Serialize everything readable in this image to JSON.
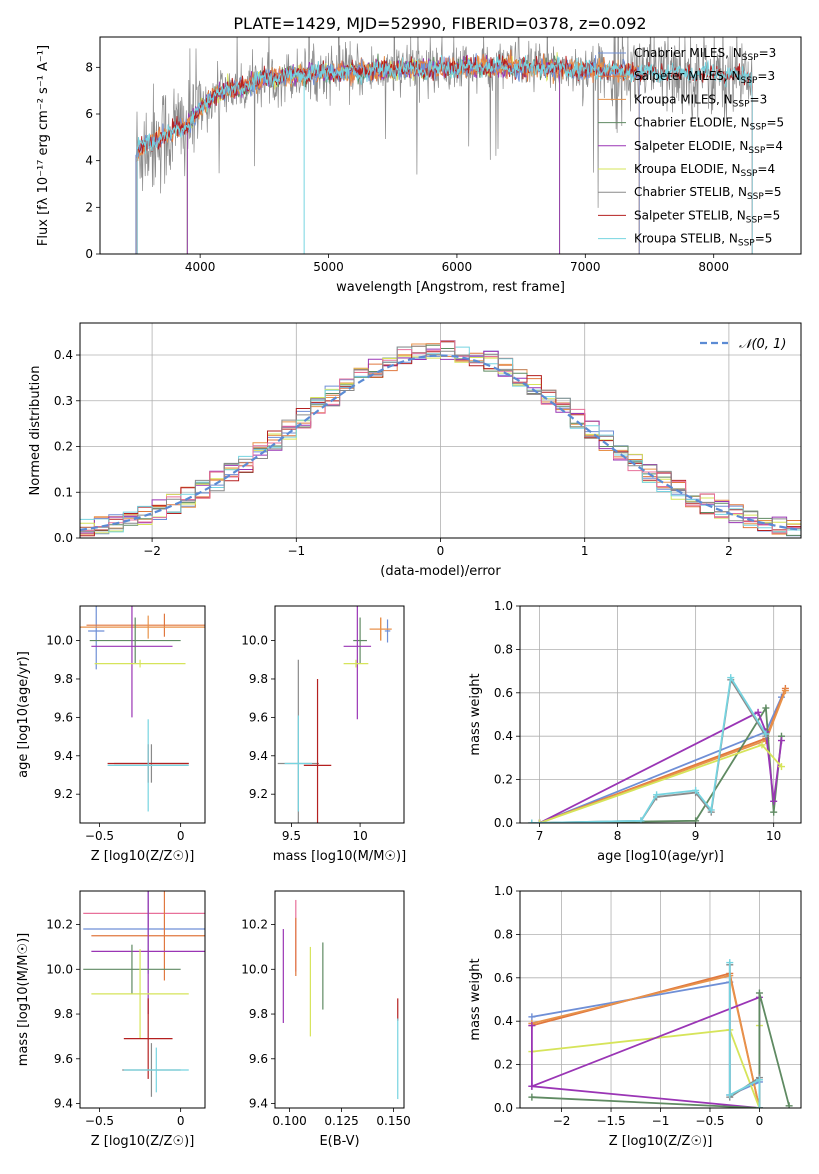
{
  "figure": {
    "title": "PLATE=1429, MJD=52990, FIBERID=0378, z=0.092"
  },
  "colors": {
    "Chabrier MILES": "#6f8fd6",
    "Salpeter MILES": "#e0783f",
    "Kroupa MILES": "#e8924a",
    "Chabrier ELODIE": "#5f8a62",
    "Salpeter ELODIE": "#9a35b5",
    "Kroupa ELODIE": "#d6e45a",
    "Chabrier STELIB": "#8a8a8a",
    "Salpeter STELIB": "#b52020",
    "Kroupa STELIB": "#76d4e0",
    "pink": "#e8709a",
    "gauss": "#5b8bd4"
  },
  "chart_data": [
    {
      "id": "spectrum",
      "type": "line",
      "title": "PLATE=1429, MJD=52990, FIBERID=0378, z=0.092",
      "xlabel": "wavelength [Angstrom, rest frame]",
      "ylabel": "Flux [fλ 10⁻¹⁷ erg cm⁻² s⁻¹ A⁻¹]",
      "xlim": [
        3220,
        8680
      ],
      "ylim": [
        0,
        9.3
      ],
      "xticks": [
        4000,
        5000,
        6000,
        7000,
        8000
      ],
      "yticks": [
        0,
        2,
        4,
        6,
        8
      ],
      "legend_position": "top-right",
      "legend": [
        {
          "name": "Chabrier MILES, NSSP=3",
          "base": "Chabrier MILES, N",
          "sub": "SSP",
          "tail": "=3"
        },
        {
          "name": "Salpeter MILES, NSSP=3",
          "base": "Salpeter MILES, N",
          "sub": "SSP",
          "tail": "=3"
        },
        {
          "name": "Kroupa MILES, NSSP=3",
          "base": "Kroupa MILES, N",
          "sub": "SSP",
          "tail": "=3"
        },
        {
          "name": "Chabrier ELODIE, NSSP=5",
          "base": "Chabrier ELODIE, N",
          "sub": "SSP",
          "tail": "=5"
        },
        {
          "name": "Salpeter ELODIE, NSSP=4",
          "base": "Salpeter ELODIE, N",
          "sub": "SSP",
          "tail": "=4"
        },
        {
          "name": "Kroupa ELODIE, NSSP=4",
          "base": "Kroupa ELODIE, N",
          "sub": "SSP",
          "tail": "=4"
        },
        {
          "name": "Chabrier STELIB, NSSP=5",
          "base": "Chabrier STELIB, N",
          "sub": "SSP",
          "tail": "=5"
        },
        {
          "name": "Salpeter STELIB, NSSP=5",
          "base": "Salpeter STELIB, N",
          "sub": "SSP",
          "tail": "=5"
        },
        {
          "name": "Kroupa STELIB, NSSP=5",
          "base": "Kroupa STELIB, N",
          "sub": "SSP",
          "tail": "=5"
        }
      ],
      "continuum": [
        [
          3500,
          4.4
        ],
        [
          3600,
          4.8
        ],
        [
          3700,
          5.0
        ],
        [
          3800,
          5.3
        ],
        [
          3900,
          5.5
        ],
        [
          4000,
          6.2
        ],
        [
          4100,
          6.8
        ],
        [
          4200,
          7.0
        ],
        [
          4300,
          7.1
        ],
        [
          4400,
          7.3
        ],
        [
          4500,
          7.5
        ],
        [
          4600,
          7.6
        ],
        [
          4800,
          7.7
        ],
        [
          5000,
          7.8
        ],
        [
          5200,
          7.8
        ],
        [
          5500,
          7.9
        ],
        [
          6000,
          8.0
        ],
        [
          6500,
          8.0
        ],
        [
          7000,
          7.9
        ],
        [
          7500,
          7.8
        ],
        [
          8000,
          7.7
        ],
        [
          8300,
          7.6
        ]
      ],
      "model_range": {
        "MILES": [
          3500,
          7420
        ],
        "ELODIE": [
          3900,
          6800
        ],
        "STELIB": [
          3510,
          8300
        ]
      }
    },
    {
      "id": "residuals",
      "type": "histogram",
      "xlabel": "(data-model)/error",
      "ylabel": "Normed distribution",
      "xlim": [
        -2.5,
        2.5
      ],
      "ylim": [
        0,
        0.47
      ],
      "xticks": [
        -2,
        -1,
        0,
        1,
        2
      ],
      "yticks": [
        0.0,
        0.1,
        0.2,
        0.3,
        0.4
      ],
      "legend": [
        {
          "name": "N(0,1)",
          "label": "𝒩(0, 1)"
        }
      ],
      "legend_position": "top-right",
      "bin_width": 0.1,
      "bins_from": -2.5,
      "gaussian": {
        "mean": 0,
        "sigma": 1
      }
    },
    {
      "id": "age-vs-Z",
      "type": "errorbar",
      "xlabel": "Z [log10(Z/Z☉)]",
      "ylabel": "age  [log10(age/yr)]",
      "xlim": [
        -0.62,
        0.15
      ],
      "ylim": [
        9.05,
        10.18
      ],
      "xticks": [
        -0.5,
        0.0
      ],
      "yticks": [
        9.2,
        9.4,
        9.6,
        9.8,
        10.0
      ],
      "points": [
        {
          "model": "Chabrier MILES",
          "x": -0.52,
          "xerr": 0.05,
          "y": 10.05,
          "yerr": 0.2
        },
        {
          "model": "Salpeter MILES",
          "x": -0.1,
          "xerr": 0.48,
          "y": 10.08,
          "yerr": 0.06
        },
        {
          "model": "Kroupa MILES",
          "x": -0.2,
          "xerr": 0.45,
          "y": 10.07,
          "yerr": 0.06
        },
        {
          "model": "Chabrier ELODIE",
          "x": -0.28,
          "xerr": 0.28,
          "y": 10.0,
          "yerr": 0.12
        },
        {
          "model": "Salpeter ELODIE",
          "x": -0.3,
          "xerr": 0.25,
          "y": 9.97,
          "yerr": 0.37
        },
        {
          "model": "Kroupa ELODIE",
          "x": -0.25,
          "xerr": 0.28,
          "y": 9.88,
          "yerr": 0.02
        },
        {
          "model": "Chabrier STELIB",
          "x": -0.18,
          "xerr": 0.23,
          "y": 9.36,
          "yerr": 0.1
        },
        {
          "model": "Salpeter STELIB",
          "x": -0.2,
          "xerr": 0.25,
          "y": 9.36,
          "yerr": 0.1
        },
        {
          "model": "Kroupa STELIB",
          "x": -0.2,
          "xerr": 0.25,
          "y": 9.35,
          "yerr": 0.24
        }
      ]
    },
    {
      "id": "age-vs-mass",
      "type": "errorbar",
      "xlabel": "mass [log10(M/M☉)]",
      "ylabel": "",
      "xlim": [
        9.38,
        10.32
      ],
      "ylim": [
        9.05,
        10.18
      ],
      "xticks": [
        9.5,
        10.0
      ],
      "yticks": [
        9.2,
        9.4,
        9.6,
        9.8,
        10.0
      ],
      "points": [
        {
          "model": "Chabrier MILES",
          "x": 10.2,
          "xerr": 0.02,
          "y": 10.05,
          "yerr": 0.06
        },
        {
          "model": "Salpeter MILES",
          "x": 10.15,
          "xerr": 0.08,
          "y": 10.06,
          "yerr": 0.06
        },
        {
          "model": "Kroupa MILES",
          "x": 10.15,
          "xerr": 0.08,
          "y": 10.06,
          "yerr": 0.06
        },
        {
          "model": "Chabrier ELODIE",
          "x": 10.0,
          "xerr": 0.05,
          "y": 10.0,
          "yerr": 0.12
        },
        {
          "model": "Salpeter ELODIE",
          "x": 9.98,
          "xerr": 0.1,
          "y": 9.97,
          "yerr": 0.38
        },
        {
          "model": "Kroupa ELODIE",
          "x": 9.97,
          "xerr": 0.09,
          "y": 9.88,
          "yerr": 0.02
        },
        {
          "model": "Chabrier STELIB",
          "x": 9.55,
          "xerr": 0.15,
          "y": 9.36,
          "yerr": 0.54
        },
        {
          "model": "Salpeter STELIB",
          "x": 9.69,
          "xerr": 0.1,
          "y": 9.35,
          "yerr": 0.45
        },
        {
          "model": "Kroupa STELIB",
          "x": 9.55,
          "xerr": 0.1,
          "y": 9.36,
          "yerr": 0.25
        }
      ]
    },
    {
      "id": "weight-vs-age",
      "type": "line",
      "xlabel": "age  [log10(age/yr)]",
      "ylabel": "mass weight",
      "xlim": [
        6.75,
        10.35
      ],
      "ylim": [
        0,
        1.0
      ],
      "xticks": [
        7,
        8,
        9,
        10
      ],
      "yticks": [
        0.0,
        0.2,
        0.4,
        0.6,
        0.8,
        1.0
      ],
      "grid": true,
      "series": [
        {
          "model": "Chabrier MILES",
          "x": [
            7.0,
            9.9,
            10.1
          ],
          "y": [
            0.0,
            0.42,
            0.58
          ]
        },
        {
          "model": "Salpeter MILES",
          "x": [
            7.0,
            9.9,
            10.15
          ],
          "y": [
            0.0,
            0.39,
            0.62
          ]
        },
        {
          "model": "Kroupa MILES",
          "x": [
            7.0,
            9.9,
            10.15
          ],
          "y": [
            0.0,
            0.38,
            0.61
          ]
        },
        {
          "model": "Chabrier ELODIE",
          "x": [
            7.0,
            9.0,
            9.9,
            10.0,
            10.1
          ],
          "y": [
            0.0,
            0.01,
            0.53,
            0.05,
            0.4
          ]
        },
        {
          "model": "Salpeter ELODIE",
          "x": [
            7.0,
            9.8,
            9.9,
            10.0,
            10.1
          ],
          "y": [
            0.0,
            0.51,
            0.42,
            0.1,
            0.38
          ]
        },
        {
          "model": "Kroupa ELODIE",
          "x": [
            7.0,
            9.85,
            10.1
          ],
          "y": [
            0.0,
            0.36,
            0.26
          ]
        },
        {
          "model": "Chabrier STELIB",
          "x": [
            6.9,
            8.3,
            8.5,
            9.0,
            9.2,
            9.45,
            9.9
          ],
          "y": [
            0.0,
            0.01,
            0.12,
            0.14,
            0.05,
            0.66,
            0.4
          ]
        },
        {
          "model": "Kroupa STELIB",
          "x": [
            6.9,
            8.3,
            8.5,
            9.0,
            9.2,
            9.45,
            9.9
          ],
          "y": [
            0.0,
            0.01,
            0.13,
            0.15,
            0.06,
            0.67,
            0.41
          ]
        }
      ]
    },
    {
      "id": "mass-vs-Z",
      "type": "errorbar",
      "xlabel": "Z [log10(Z/Z☉)]",
      "ylabel": "mass [log10(M/M☉)]",
      "xlim": [
        -0.62,
        0.15
      ],
      "ylim": [
        9.38,
        10.35
      ],
      "xticks": [
        -0.5,
        0.0
      ],
      "yticks": [
        9.4,
        9.6,
        9.8,
        10.0,
        10.2
      ],
      "points": [
        {
          "model": "pink",
          "x": -0.2,
          "xerr": 0.4,
          "y": 10.25,
          "yerr": 0.06
        },
        {
          "model": "Chabrier MILES",
          "x": -0.2,
          "xerr": 0.4,
          "y": 10.18,
          "yerr": 0.2
        },
        {
          "model": "Salpeter MILES",
          "x": -0.1,
          "xerr": 0.45,
          "y": 10.15,
          "yerr": 0.2
        },
        {
          "model": "Salpeter ELODIE",
          "x": -0.2,
          "xerr": 0.35,
          "y": 10.08,
          "yerr": 0.28
        },
        {
          "model": "Chabrier ELODIE",
          "x": -0.3,
          "xerr": 0.3,
          "y": 10.0,
          "yerr": 0.11
        },
        {
          "model": "Kroupa ELODIE",
          "x": -0.25,
          "xerr": 0.3,
          "y": 9.89,
          "yerr": 0.2
        },
        {
          "model": "Salpeter STELIB",
          "x": -0.2,
          "xerr": 0.15,
          "y": 9.69,
          "yerr": 0.18
        },
        {
          "model": "Chabrier STELIB",
          "x": -0.18,
          "xerr": 0.18,
          "y": 9.55,
          "yerr": 0.12
        },
        {
          "model": "Kroupa STELIB",
          "x": -0.15,
          "xerr": 0.2,
          "y": 9.55,
          "yerr": 0.1
        }
      ]
    },
    {
      "id": "mass-vs-ebv",
      "type": "errorbar",
      "xlabel": "E(B-V)",
      "ylabel": "",
      "xlim": [
        0.093,
        0.155
      ],
      "ylim": [
        9.38,
        10.35
      ],
      "xticks": [
        0.1,
        0.125,
        0.15
      ],
      "xticklabels": [
        "0.100",
        "0.125",
        "0.150"
      ],
      "yticks": [
        9.4,
        9.6,
        9.8,
        10.0,
        10.2
      ],
      "points": [
        {
          "model": "Salpeter ELODIE",
          "x": 0.097,
          "xerr": 0,
          "y": 9.97,
          "yerr": 0.21
        },
        {
          "model": "pink",
          "x": 0.103,
          "xerr": 0,
          "y": 10.15,
          "yerr": 0.16
        },
        {
          "model": "Salpeter MILES",
          "x": 0.103,
          "xerr": 0,
          "y": 10.1,
          "yerr": 0.13
        },
        {
          "model": "Kroupa ELODIE",
          "x": 0.11,
          "xerr": 0,
          "y": 9.9,
          "yerr": 0.2
        },
        {
          "model": "Chabrier ELODIE",
          "x": 0.116,
          "xerr": 0,
          "y": 9.97,
          "yerr": 0.15
        },
        {
          "model": "Salpeter STELIB",
          "x": 0.152,
          "xerr": 0,
          "y": 9.82,
          "yerr": 0.05
        },
        {
          "model": "Kroupa STELIB",
          "x": 0.152,
          "xerr": 0,
          "y": 9.6,
          "yerr": 0.18
        }
      ]
    },
    {
      "id": "weight-vs-Z",
      "type": "line",
      "xlabel": "Z [log10(Z/Z☉)]",
      "ylabel": "mass weight",
      "xlim": [
        -2.42,
        0.42
      ],
      "ylim": [
        0,
        1.0
      ],
      "xticks": [
        -2.0,
        -1.5,
        -1.0,
        -0.5,
        0.0
      ],
      "yticks": [
        0.0,
        0.2,
        0.4,
        0.6,
        0.8,
        1.0
      ],
      "grid": true,
      "series": [
        {
          "model": "Chabrier MILES",
          "x": [
            -2.3,
            -0.3,
            -0.3,
            0.0,
            0.0
          ],
          "y": [
            0.42,
            0.58,
            0.06,
            0.12,
            0.0
          ]
        },
        {
          "model": "Salpeter MILES",
          "x": [
            -2.3,
            -0.3,
            0.0,
            0.0
          ],
          "y": [
            0.38,
            0.62,
            0.0,
            0.0
          ]
        },
        {
          "model": "Kroupa MILES",
          "x": [
            -2.3,
            -0.3,
            0.0
          ],
          "y": [
            0.39,
            0.61,
            0.0
          ]
        },
        {
          "model": "Kroupa ELODIE",
          "x": [
            -2.3,
            -0.3,
            0.0,
            0.0
          ],
          "y": [
            0.26,
            0.36,
            0.0,
            0.38
          ]
        },
        {
          "model": "Salpeter ELODIE",
          "x": [
            -2.3,
            -2.3,
            0.0,
            0.0,
            -2.3
          ],
          "y": [
            0.38,
            0.1,
            0.0,
            0.51,
            0.1
          ]
        },
        {
          "model": "Chabrier ELODIE",
          "x": [
            -2.3,
            0.0,
            0.0,
            0.3
          ],
          "y": [
            0.05,
            0.0,
            0.53,
            0.01
          ]
        },
        {
          "model": "Chabrier STELIB",
          "x": [
            -0.3,
            -0.3,
            0.0,
            0.0
          ],
          "y": [
            0.66,
            0.05,
            0.14,
            0.0
          ]
        },
        {
          "model": "Kroupa STELIB",
          "x": [
            -0.3,
            -0.3,
            0.0,
            0.0
          ],
          "y": [
            0.67,
            0.06,
            0.13,
            0.0
          ]
        }
      ]
    }
  ]
}
